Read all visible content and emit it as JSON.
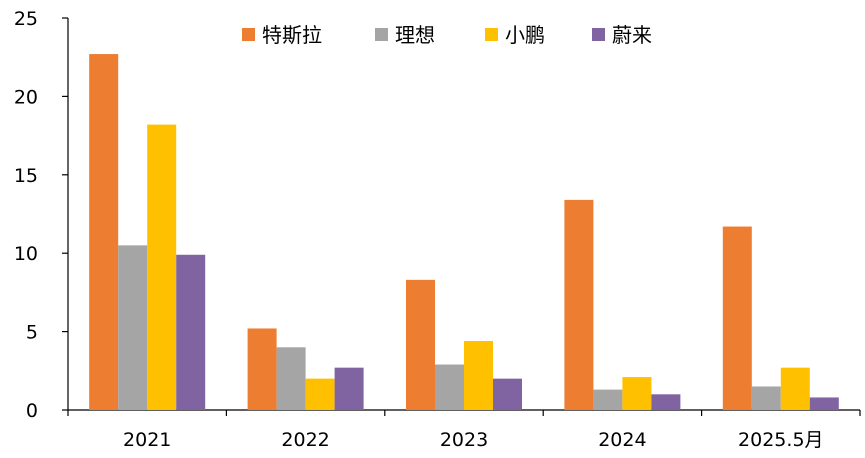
{
  "chart_data": {
    "type": "bar",
    "title": "",
    "xlabel": "",
    "ylabel": "",
    "categories": [
      "2021",
      "2022",
      "2023",
      "2024",
      "2025.5月"
    ],
    "ylim": [
      0,
      25
    ],
    "yticks": [
      0,
      5,
      10,
      15,
      20,
      25
    ],
    "grid": false,
    "legend_position": "top",
    "series": [
      {
        "name": "特斯拉",
        "color": "#ED7D31",
        "values": [
          22.7,
          5.2,
          8.3,
          13.4,
          11.7
        ]
      },
      {
        "name": "理想",
        "color": "#A5A5A5",
        "values": [
          10.5,
          4.0,
          2.9,
          1.3,
          1.5
        ]
      },
      {
        "name": "小鹏",
        "color": "#FFC000",
        "values": [
          18.2,
          2.0,
          4.4,
          2.1,
          2.7
        ]
      },
      {
        "name": "蔚来",
        "color": "#8064A2",
        "values": [
          9.9,
          2.7,
          2.0,
          1.0,
          0.8
        ]
      }
    ]
  }
}
